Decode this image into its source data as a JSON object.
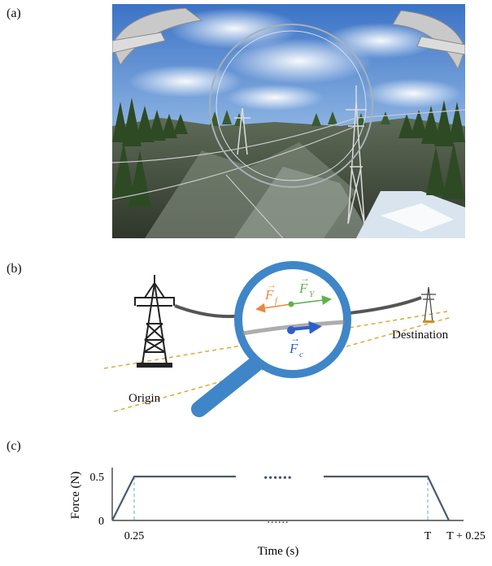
{
  "figure": {
    "panel_labels": [
      "(a)",
      "(b)",
      "(c)"
    ],
    "panel_b": {
      "origin_label": "Origin",
      "destination_label": "Destination",
      "force_labels": {
        "friction": "F",
        "friction_sub": "f",
        "gravity": "F",
        "gravity_sub": "Y",
        "control": "F",
        "control_sub": "c"
      },
      "colors": {
        "magnifier": "#3f86c8",
        "friction": "#e98a3b",
        "gravity": "#5cb34b",
        "control": "#2e5fc9",
        "guide_lines": "#e1a83a",
        "cable": "#555555"
      }
    }
  },
  "chart_data": {
    "type": "line",
    "xlabel": "Time (s)",
    "ylabel": "Force (N)",
    "yticks": [
      "0",
      "0.5"
    ],
    "xticks": [
      "0.25",
      "T",
      "T + 0.25"
    ],
    "y_values": [
      0,
      0.5
    ],
    "series": [
      {
        "points_left": [
          [
            0,
            0
          ],
          [
            0.25,
            0.5
          ],
          [
            1.5,
            0.5
          ]
        ],
        "points_right": [
          [
            "T-1.5",
            0.5
          ],
          [
            "T",
            0.5
          ],
          [
            "T+0.25",
            0
          ]
        ]
      }
    ],
    "break_marker_top": "••••••",
    "break_marker_bottom": "......",
    "line_color": "#4a5a6e",
    "marker_color": "#6aa8d0"
  }
}
